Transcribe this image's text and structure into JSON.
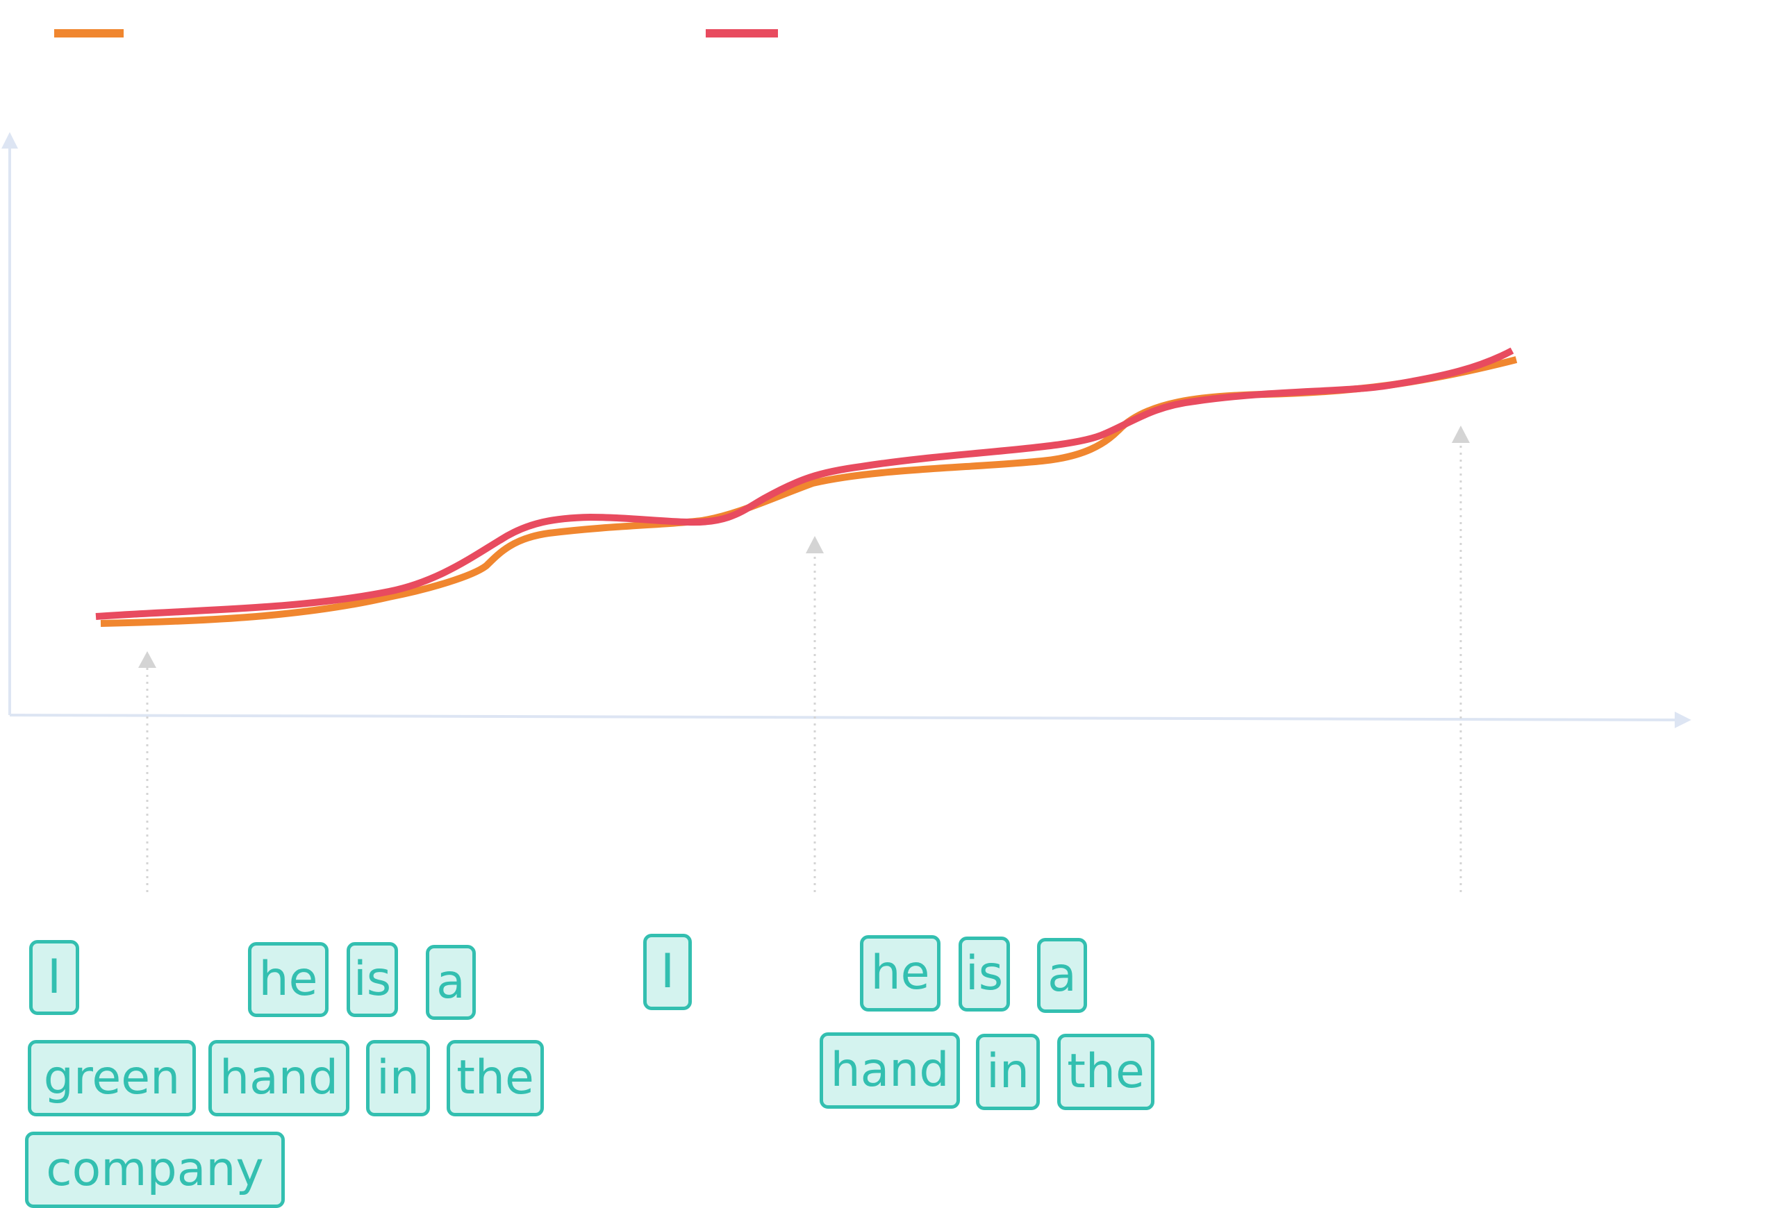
{
  "legend": [
    {
      "color": "#f0862f"
    },
    {
      "color": "#e84b5f"
    }
  ],
  "colors": {
    "axis": "#dde5f3",
    "marker": "#d4d4d4",
    "token_fill": "#d4f3ef",
    "token_border": "#33bfb0",
    "token_text": "#33bfb0"
  },
  "curves": {
    "orange": {
      "color": "#f0862f"
    },
    "red": {
      "color": "#e84b5f"
    }
  },
  "tokens_left": {
    "row1": [
      "I",
      "he",
      "is",
      "a"
    ],
    "row2": [
      "green",
      "hand",
      "in",
      "the"
    ],
    "row3": [
      "company"
    ]
  },
  "tokens_right": {
    "row1": [
      "I",
      "he",
      "is",
      "a"
    ],
    "row2": [
      "hand",
      "in",
      "the"
    ]
  }
}
